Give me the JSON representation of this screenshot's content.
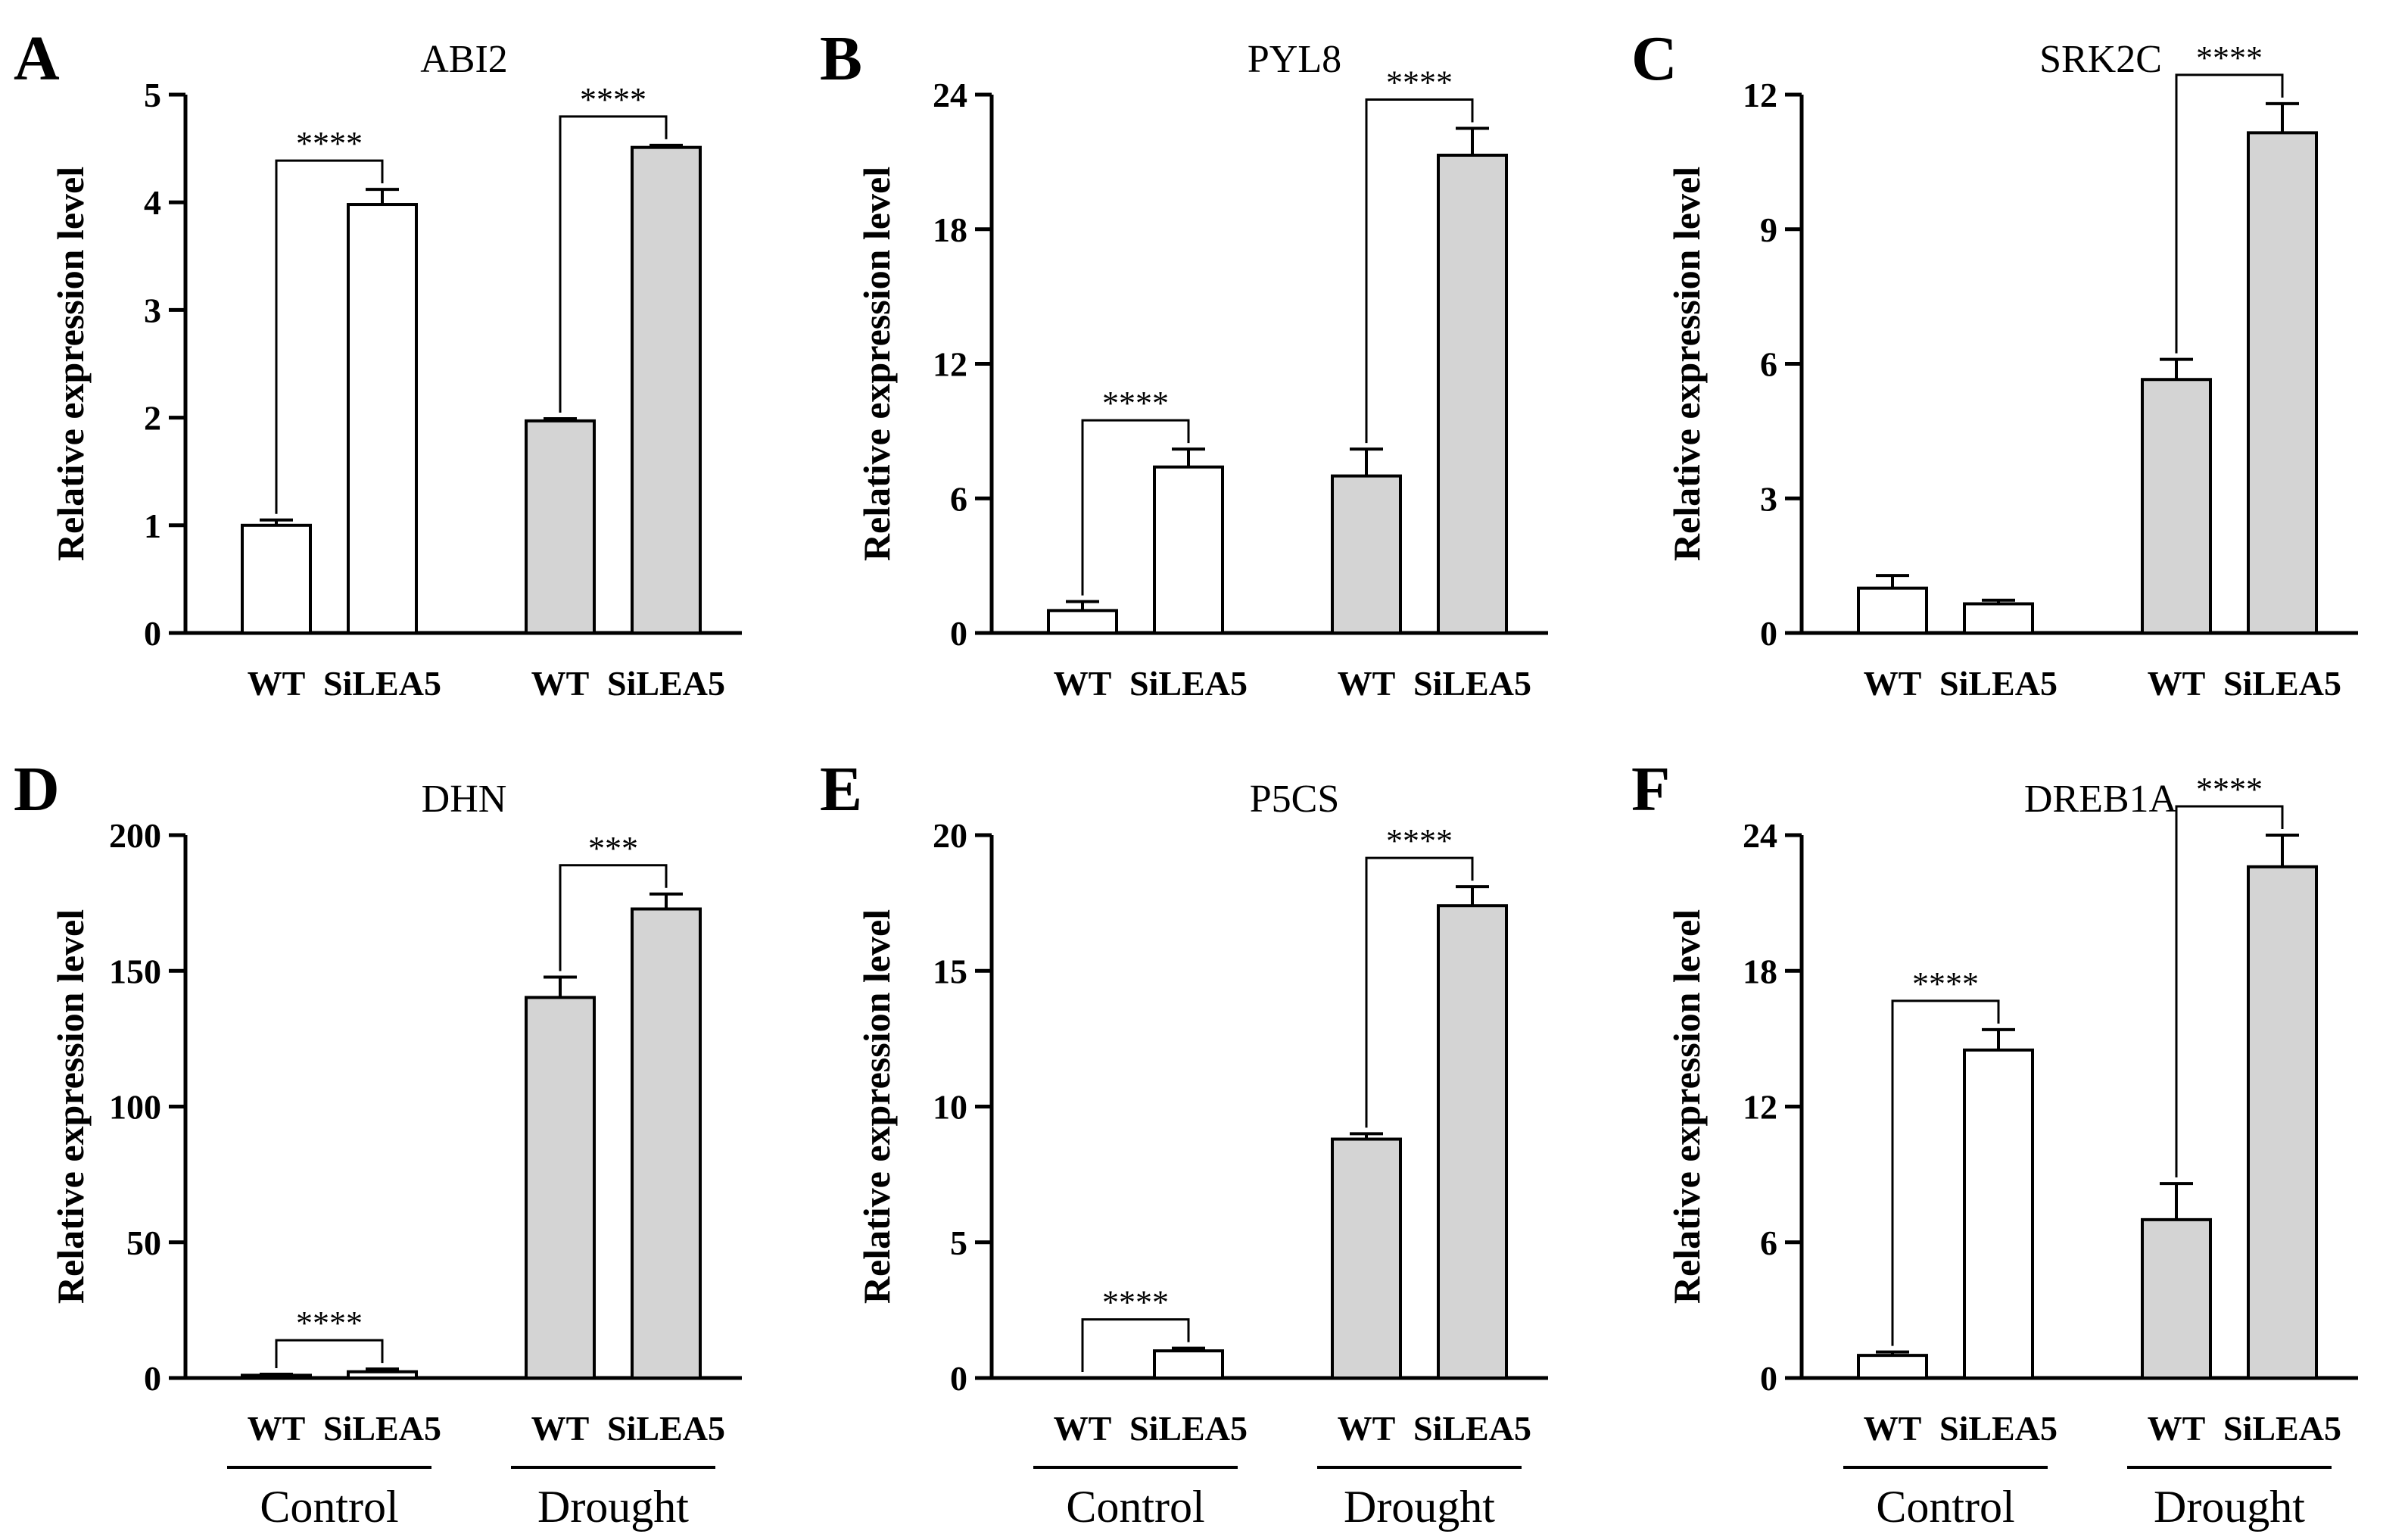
{
  "figure": {
    "ylabel": "Relative expression level",
    "bar_labels": [
      "WT",
      "SiLEA5"
    ],
    "group_labels": [
      "Control",
      "Drought"
    ],
    "colors": {
      "control": "#ffffff",
      "drought": "#d4d4d4",
      "stroke": "#000000"
    }
  },
  "chart_data": [
    {
      "panel": "A",
      "type": "bar",
      "title": "ABI2",
      "categories": [
        "WT",
        "SiLEA5",
        "WT",
        "SiLEA5"
      ],
      "conditions": [
        "Control",
        "Control",
        "Drought",
        "Drought"
      ],
      "values": [
        1.0,
        3.98,
        1.97,
        4.51
      ],
      "errors": [
        0.05,
        0.14,
        0.02,
        0.02
      ],
      "ylabel": "Relative expression level",
      "ylim": [
        0,
        5
      ],
      "yticks": [
        0,
        1,
        2,
        3,
        4,
        5
      ],
      "significance": [
        {
          "pair": [
            0,
            1
          ],
          "label": "****"
        },
        {
          "pair": [
            2,
            3
          ],
          "label": "****"
        }
      ],
      "show_group_labels": false
    },
    {
      "panel": "B",
      "type": "bar",
      "title": "PYL8",
      "categories": [
        "WT",
        "SiLEA5",
        "WT",
        "SiLEA5"
      ],
      "conditions": [
        "Control",
        "Control",
        "Drought",
        "Drought"
      ],
      "values": [
        1.0,
        7.4,
        7.0,
        21.3
      ],
      "errors": [
        0.4,
        0.8,
        1.2,
        1.2
      ],
      "ylabel": "Relative expression level",
      "ylim": [
        0,
        24
      ],
      "yticks": [
        0,
        6,
        12,
        18,
        24
      ],
      "significance": [
        {
          "pair": [
            0,
            1
          ],
          "label": "****"
        },
        {
          "pair": [
            2,
            3
          ],
          "label": "****"
        }
      ],
      "show_group_labels": false
    },
    {
      "panel": "C",
      "type": "bar",
      "title": "SRK2C",
      "categories": [
        "WT",
        "SiLEA5",
        "WT",
        "SiLEA5"
      ],
      "conditions": [
        "Control",
        "Control",
        "Drought",
        "Drought"
      ],
      "values": [
        1.0,
        0.65,
        5.65,
        11.15
      ],
      "errors": [
        0.28,
        0.08,
        0.45,
        0.65
      ],
      "ylabel": "Relative expression level",
      "ylim": [
        0,
        12
      ],
      "yticks": [
        0,
        3,
        6,
        9,
        12
      ],
      "significance": [
        {
          "pair": [
            2,
            3
          ],
          "label": "****"
        }
      ],
      "show_group_labels": false
    },
    {
      "panel": "D",
      "type": "bar",
      "title": "DHN",
      "categories": [
        "WT",
        "SiLEA5",
        "WT",
        "SiLEA5"
      ],
      "conditions": [
        "Control",
        "Control",
        "Drought",
        "Drought"
      ],
      "values": [
        1.0,
        2.3,
        140.2,
        172.8
      ],
      "errors": [
        0.4,
        1.0,
        7.5,
        5.5
      ],
      "ylabel": "Relative expression level",
      "ylim": [
        0,
        200
      ],
      "yticks": [
        0,
        50,
        100,
        150,
        200
      ],
      "significance": [
        {
          "pair": [
            0,
            1
          ],
          "label": "****"
        },
        {
          "pair": [
            2,
            3
          ],
          "label": "***"
        }
      ],
      "show_group_labels": true
    },
    {
      "panel": "E",
      "type": "bar",
      "title": "P5CS",
      "categories": [
        "WT",
        "SiLEA5",
        "WT",
        "SiLEA5"
      ],
      "conditions": [
        "Control",
        "Control",
        "Drought",
        "Drought"
      ],
      "values": [
        0.0,
        1.0,
        8.8,
        17.4
      ],
      "errors": [
        0.0,
        0.1,
        0.2,
        0.7
      ],
      "ylabel": "Relative expression level",
      "ylim": [
        0,
        20
      ],
      "yticks": [
        0,
        5,
        10,
        15,
        20
      ],
      "significance": [
        {
          "pair": [
            0,
            1
          ],
          "label": "****"
        },
        {
          "pair": [
            2,
            3
          ],
          "label": "****"
        }
      ],
      "show_group_labels": true
    },
    {
      "panel": "F",
      "type": "bar",
      "title": "DREB1A",
      "categories": [
        "WT",
        "SiLEA5",
        "WT",
        "SiLEA5"
      ],
      "conditions": [
        "Control",
        "Control",
        "Drought",
        "Drought"
      ],
      "values": [
        1.0,
        14.5,
        7.0,
        22.6
      ],
      "errors": [
        0.15,
        0.9,
        1.6,
        1.4
      ],
      "ylabel": "Relative expression level",
      "ylim": [
        0,
        24
      ],
      "yticks": [
        0,
        6,
        12,
        18,
        24
      ],
      "significance": [
        {
          "pair": [
            0,
            1
          ],
          "label": "****"
        },
        {
          "pair": [
            2,
            3
          ],
          "label": "****"
        }
      ],
      "show_group_labels": true
    }
  ]
}
